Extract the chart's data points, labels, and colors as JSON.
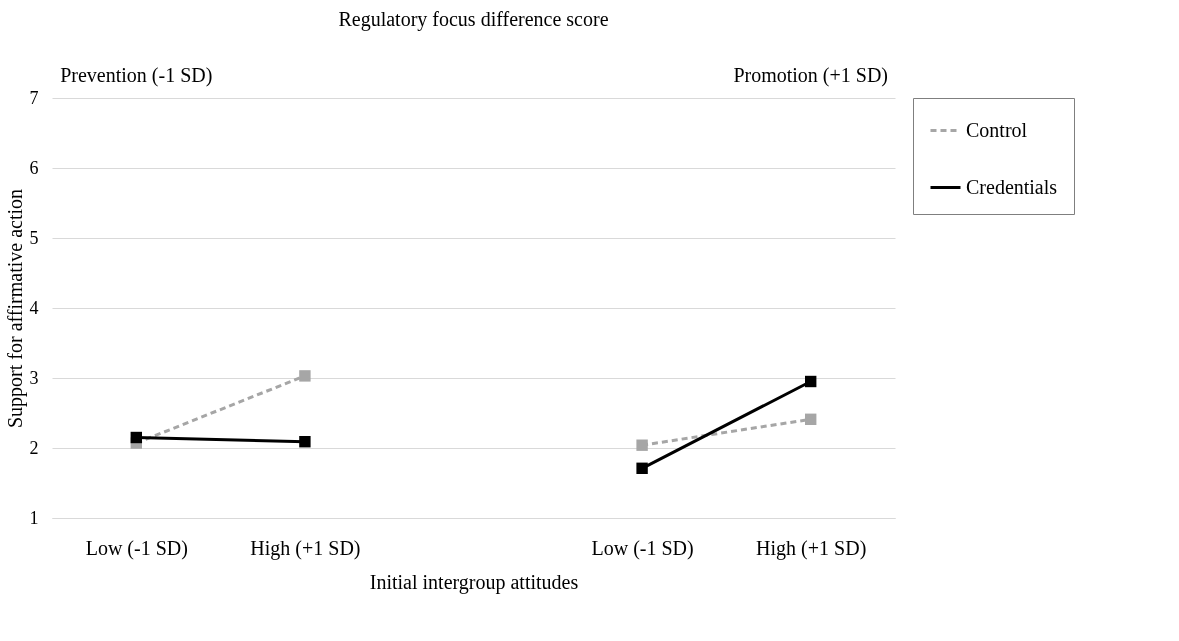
{
  "chart_data": {
    "type": "line",
    "title": "Regulatory focus difference score",
    "xlabel": "Initial intergroup attitudes",
    "ylabel": "Support for affirmative action",
    "categories": [
      "Low (-1 SD)",
      "High (+1 SD)",
      null,
      "Low (-1 SD)",
      "High (+1 SD)"
    ],
    "series": [
      {
        "name": "Control",
        "color": "#a6a6a6",
        "line_style": "dashed",
        "values": [
          2.07,
          3.03,
          null,
          2.04,
          2.41
        ]
      },
      {
        "name": "Credentials",
        "color": "#000000",
        "line_style": "solid",
        "values": [
          2.15,
          2.09,
          null,
          1.71,
          2.95
        ]
      }
    ],
    "annotations": [
      "Prevention (-1 SD)",
      "Promotion (+1 SD)"
    ],
    "ylim": [
      1,
      7
    ],
    "yticks": [
      1,
      2,
      3,
      4,
      5,
      6,
      7
    ],
    "grid": "y",
    "legend": "right",
    "marker": "square"
  }
}
